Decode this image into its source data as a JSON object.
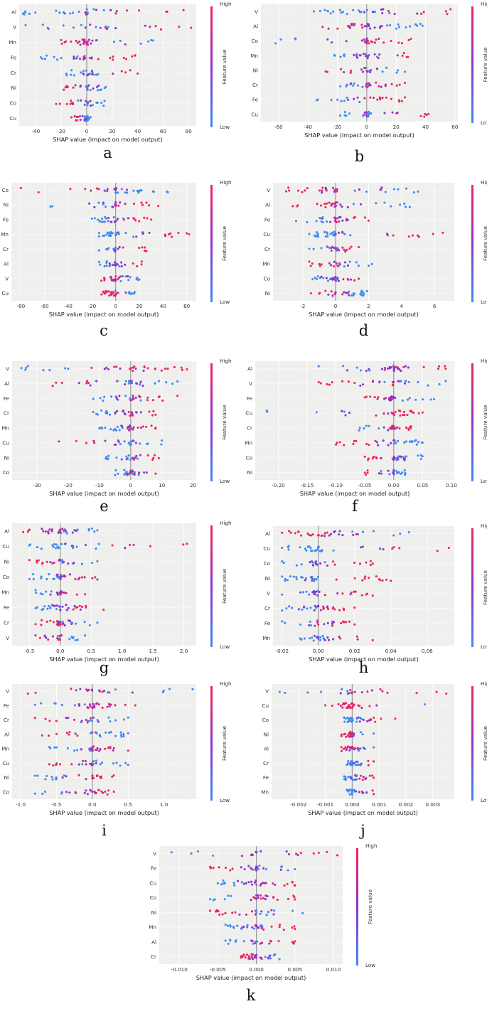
{
  "colors": {
    "low": "#3d8bf2",
    "high": "#f0245c",
    "mid": "#8e34cc",
    "plot_bg": "#efefee"
  },
  "chart_data": [
    {
      "letter": "a",
      "type": "scatter",
      "xlabel": "SHAP value (impact on model output)",
      "features": [
        "Al",
        "V",
        "Mn",
        "Fe",
        "Cr",
        "Ni",
        "Co",
        "Cu"
      ],
      "xlim": [
        -53,
        86
      ],
      "xticks": [
        -40,
        -20,
        0,
        20,
        40,
        60,
        80
      ],
      "xtick_labels": [
        "-40",
        "-20",
        "0",
        "20",
        "40",
        "60",
        "80"
      ],
      "spread": [
        [
          -50,
          76
        ],
        [
          -48,
          82
        ],
        [
          -20,
          52
        ],
        [
          -36,
          38
        ],
        [
          -16,
          40
        ],
        [
          -18,
          15
        ],
        [
          -24,
          14
        ],
        [
          -12,
          3
        ]
      ],
      "colorbar": {
        "high": "High",
        "low": "Low",
        "label": "Feature value"
      }
    },
    {
      "letter": "b",
      "type": "scatter",
      "xlabel": "SHAP value (impact on model output)",
      "features": [
        "V",
        "Al",
        "Co",
        "Mn",
        "Ni",
        "Cr",
        "Fe",
        "Cu"
      ],
      "xlim": [
        -72,
        62
      ],
      "xticks": [
        -60,
        -40,
        -20,
        0,
        20,
        40,
        60
      ],
      "xtick_labels": [
        "-60",
        "-40",
        "-20",
        "0",
        "20",
        "40",
        "60"
      ],
      "spread": [
        [
          -36,
          57
        ],
        [
          -30,
          38
        ],
        [
          -62,
          30
        ],
        [
          -22,
          28
        ],
        [
          -28,
          26
        ],
        [
          -18,
          26
        ],
        [
          -34,
          26
        ],
        [
          -18,
          42
        ]
      ],
      "colorbar": {
        "high": "High",
        "low": "Low",
        "label": "Feature value"
      }
    },
    {
      "letter": "c",
      "type": "scatter",
      "xlabel": "SHAP value (impact on model output)",
      "features": [
        "Co",
        "Ni",
        "Fe",
        "Mn",
        "Cr",
        "Al",
        "V",
        "Cu"
      ],
      "xlim": [
        -88,
        68
      ],
      "xticks": [
        -80,
        -60,
        -40,
        -20,
        0,
        20,
        40,
        60
      ],
      "xtick_labels": [
        "-80",
        "-60",
        "-40",
        "-20",
        "0",
        "20",
        "40",
        "60"
      ],
      "spread": [
        [
          -80,
          44
        ],
        [
          -55,
          36
        ],
        [
          -20,
          30
        ],
        [
          -14,
          62
        ],
        [
          -14,
          26
        ],
        [
          -14,
          22
        ],
        [
          -12,
          20
        ],
        [
          -12,
          16
        ]
      ],
      "colorbar": {
        "high": "High",
        "low": "Low",
        "label": "Feature value"
      }
    },
    {
      "letter": "d",
      "type": "scatter",
      "xlabel": "SHAP value (impact on model output)",
      "features": [
        "V",
        "Al",
        "Fe",
        "Cu",
        "Cr",
        "Mn",
        "Co",
        "Ni"
      ],
      "xlim": [
        -3.8,
        7.2
      ],
      "xticks": [
        -2,
        0,
        2,
        4,
        6
      ],
      "xtick_labels": [
        "-2",
        "0",
        "2",
        "4",
        "6"
      ],
      "spread": [
        [
          -3.0,
          5.0
        ],
        [
          -2.6,
          4.5
        ],
        [
          -2.4,
          2.0
        ],
        [
          -1.6,
          6.5
        ],
        [
          -1.6,
          1.4
        ],
        [
          -1.6,
          2.2
        ],
        [
          -1.4,
          1.4
        ],
        [
          -1.5,
          1.9
        ]
      ],
      "colorbar": {
        "high": "High",
        "low": "Low",
        "label": "Feature value"
      }
    },
    {
      "letter": "e",
      "type": "scatter",
      "xlabel": "SHAP value (impact on model output)",
      "features": [
        "V",
        "Al",
        "Fe",
        "Cr",
        "Mn",
        "Cu",
        "Ni",
        "Co"
      ],
      "xlim": [
        -38,
        21
      ],
      "xticks": [
        -30,
        -20,
        -10,
        0,
        10,
        20
      ],
      "xtick_labels": [
        "-30",
        "-20",
        "-10",
        "0",
        "10",
        "20"
      ],
      "spread": [
        [
          -35,
          18
        ],
        [
          -25,
          15
        ],
        [
          -12,
          15
        ],
        [
          -12,
          8
        ],
        [
          -10,
          8
        ],
        [
          -23,
          10
        ],
        [
          -8,
          9
        ],
        [
          -5,
          8
        ]
      ],
      "colorbar": {
        "high": "High",
        "low": "Low",
        "label": "Feature value"
      }
    },
    {
      "letter": "f",
      "type": "scatter",
      "xlabel": "SHAP value (impact on model output)",
      "features": [
        "Al",
        "V",
        "Fe",
        "Cu",
        "Cr",
        "Mn",
        "Co",
        "Ni"
      ],
      "xlim": [
        -0.24,
        0.105
      ],
      "xticks": [
        -0.2,
        -0.15,
        -0.1,
        -0.05,
        0.0,
        0.05,
        0.1
      ],
      "xtick_labels": [
        "-0.20",
        "-0.15",
        "-0.10",
        "-0.05",
        "0.00",
        "0.05",
        "0.10"
      ],
      "spread": [
        [
          -0.13,
          0.09
        ],
        [
          -0.13,
          0.09
        ],
        [
          -0.05,
          0.07
        ],
        [
          -0.22,
          0.05
        ],
        [
          -0.06,
          0.03
        ],
        [
          -0.1,
          0.05
        ],
        [
          -0.05,
          0.05
        ],
        [
          -0.05,
          0.02
        ]
      ],
      "colorbar": {
        "high": "High",
        "low": "Low",
        "label": "Feature value"
      }
    },
    {
      "letter": "g",
      "type": "scatter",
      "xlabel": "SHAP value (impact on model output)",
      "features": [
        "Al",
        "Cu",
        "Ni",
        "Co",
        "Mn",
        "Fe",
        "Cr",
        "V"
      ],
      "xlim": [
        -0.78,
        2.2
      ],
      "xticks": [
        -0.5,
        0.0,
        0.5,
        1.0,
        1.5,
        2.0
      ],
      "xtick_labels": [
        "-0.5",
        "0.0",
        "0.5",
        "1.0",
        "1.5",
        "2.0"
      ],
      "spread": [
        [
          -0.6,
          0.6
        ],
        [
          -0.5,
          2.05
        ],
        [
          -0.5,
          0.6
        ],
        [
          -0.5,
          0.6
        ],
        [
          -0.4,
          0.4
        ],
        [
          -0.4,
          0.7
        ],
        [
          -0.4,
          0.6
        ],
        [
          -0.4,
          0.4
        ]
      ],
      "colorbar": {
        "high": "High",
        "low": "Low",
        "label": "Feature value"
      }
    },
    {
      "letter": "h",
      "type": "scatter",
      "xlabel": "SHAP value (impact on model output)",
      "features": [
        "Al",
        "Cu",
        "Co",
        "Ni",
        "V",
        "Cr",
        "Fe",
        "Mn"
      ],
      "xlim": [
        -0.025,
        0.075
      ],
      "xticks": [
        -0.02,
        0.0,
        0.02,
        0.04,
        0.06
      ],
      "xtick_labels": [
        "-0.02",
        "0.00",
        "0.02",
        "0.04",
        "0.06"
      ],
      "spread": [
        [
          -0.02,
          0.05
        ],
        [
          -0.02,
          0.072
        ],
        [
          -0.02,
          0.03
        ],
        [
          -0.02,
          0.04
        ],
        [
          -0.02,
          0.03
        ],
        [
          -0.02,
          0.02
        ],
        [
          -0.02,
          0.02
        ],
        [
          -0.01,
          0.03
        ]
      ],
      "colorbar": {
        "high": "High",
        "low": "Low",
        "label": "Feature value"
      }
    },
    {
      "letter": "i",
      "type": "scatter",
      "xlabel": "SHAP value (impact on model output)",
      "features": [
        "V",
        "Fe",
        "Cr",
        "Al",
        "Mn",
        "Cu",
        "Ni",
        "Co"
      ],
      "xlim": [
        -1.12,
        1.45
      ],
      "xticks": [
        -1.0,
        -0.5,
        0.0,
        0.5,
        1.0
      ],
      "xtick_labels": [
        "-1.0",
        "-0.5",
        "0.0",
        "0.5",
        "1.0"
      ],
      "spread": [
        [
          -0.9,
          1.4
        ],
        [
          -0.8,
          0.6
        ],
        [
          -0.8,
          0.5
        ],
        [
          -0.7,
          0.5
        ],
        [
          -0.6,
          0.5
        ],
        [
          -0.6,
          0.5
        ],
        [
          -0.8,
          0.3
        ],
        [
          -0.8,
          0.3
        ]
      ],
      "colorbar": {
        "high": "High",
        "low": "Low",
        "label": "Feature value"
      }
    },
    {
      "letter": "j",
      "type": "scatter",
      "xlabel": "SHAP value (impact on model output)",
      "features": [
        "V",
        "Cu",
        "Co",
        "Ni",
        "Al",
        "Cr",
        "Fe",
        "Mn"
      ],
      "xlim": [
        -0.003,
        0.0038
      ],
      "xticks": [
        -0.002,
        -0.001,
        0.0,
        0.001,
        0.002,
        0.003
      ],
      "xtick_labels": [
        "-0.002",
        "-0.001",
        "0.000",
        "0.001",
        "0.002",
        "0.003"
      ],
      "spread": [
        [
          -0.0027,
          0.0035
        ],
        [
          -0.001,
          0.0027
        ],
        [
          -0.0003,
          0.0016
        ],
        [
          -0.0004,
          0.0008
        ],
        [
          -0.0004,
          0.0008
        ],
        [
          -0.0002,
          0.0008
        ],
        [
          -0.0003,
          0.0008
        ],
        [
          -0.0002,
          0.0008
        ]
      ],
      "colorbar": {
        "high": "High",
        "low": "Low",
        "label": "Feature value"
      }
    },
    {
      "letter": "k",
      "type": "scatter",
      "xlabel": "SHAP value (impact on model output)",
      "features": [
        "V",
        "Fe",
        "Cu",
        "Co",
        "Ni",
        "Mn",
        "Al",
        "Cr"
      ],
      "xlim": [
        -0.0126,
        0.0112
      ],
      "xticks": [
        -0.01,
        -0.005,
        0.0,
        0.005,
        0.01
      ],
      "xtick_labels": [
        "-0.010",
        "-0.005",
        "0.000",
        "0.005",
        "0.010"
      ],
      "spread": [
        [
          -0.011,
          0.0105
        ],
        [
          -0.006,
          0.005
        ],
        [
          -0.005,
          0.005
        ],
        [
          -0.006,
          0.005
        ],
        [
          -0.006,
          0.006
        ],
        [
          -0.004,
          0.005
        ],
        [
          -0.004,
          0.005
        ],
        [
          -0.002,
          0.003
        ]
      ],
      "colorbar": {
        "high": "High",
        "low": "Low",
        "label": "Feature value"
      }
    }
  ]
}
